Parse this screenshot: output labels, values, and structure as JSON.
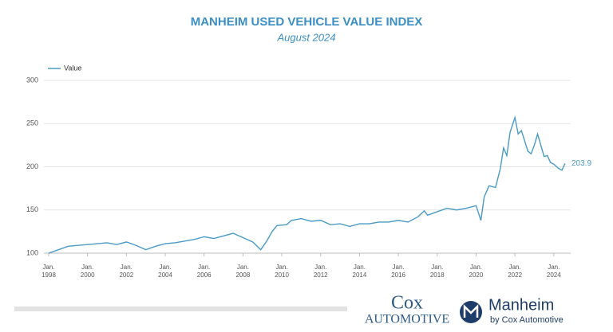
{
  "chart_data": {
    "type": "line",
    "title": "MANHEIM USED VEHICLE VALUE INDEX",
    "subtitle": "August 2024",
    "x": [
      "1998-01",
      "1998-07",
      "1999-01",
      "1999-07",
      "2000-01",
      "2000-07",
      "2001-01",
      "2001-07",
      "2002-01",
      "2002-07",
      "2003-01",
      "2003-07",
      "2004-01",
      "2004-07",
      "2005-01",
      "2005-07",
      "2006-01",
      "2006-07",
      "2007-01",
      "2007-07",
      "2008-01",
      "2008-07",
      "2008-12",
      "2009-04",
      "2009-07",
      "2009-10",
      "2010-04",
      "2010-07",
      "2011-01",
      "2011-07",
      "2012-01",
      "2012-07",
      "2013-01",
      "2013-07",
      "2014-01",
      "2014-07",
      "2015-01",
      "2015-07",
      "2016-01",
      "2016-07",
      "2017-01",
      "2017-05",
      "2017-07",
      "2018-01",
      "2018-07",
      "2019-01",
      "2019-07",
      "2020-01",
      "2020-04",
      "2020-06",
      "2020-09",
      "2021-01",
      "2021-04",
      "2021-06",
      "2021-08",
      "2021-10",
      "2022-01",
      "2022-03",
      "2022-05",
      "2022-07",
      "2022-09",
      "2022-11",
      "2023-01",
      "2023-03",
      "2023-05",
      "2023-07",
      "2023-09",
      "2023-11",
      "2024-01",
      "2024-04",
      "2024-06",
      "2024-08"
    ],
    "series": [
      {
        "name": "Value",
        "color": "#4a9ac6",
        "values": [
          100,
          104,
          108,
          109,
          110,
          111,
          112,
          110,
          113,
          109,
          104,
          108,
          111,
          112,
          114,
          116,
          119,
          117,
          120,
          123,
          118,
          113,
          104,
          115,
          125,
          132,
          133,
          138,
          140,
          137,
          138,
          133,
          134,
          131,
          134,
          134,
          136,
          136,
          138,
          136,
          142,
          149,
          144,
          148,
          152,
          150,
          152,
          155,
          138,
          165,
          178,
          176,
          198,
          222,
          213,
          240,
          257,
          238,
          242,
          230,
          218,
          215,
          225,
          238,
          225,
          212,
          213,
          205,
          203,
          198,
          196,
          203.9
        ]
      }
    ],
    "ylim": [
      100,
      300
    ],
    "yticks": [
      100,
      150,
      200,
      250,
      300
    ],
    "xlim": [
      "1998-01",
      "2024-08"
    ],
    "xticks": [
      {
        "value": "1998-01",
        "label": "Jan. 1998"
      },
      {
        "value": "2000-01",
        "label": "Jan. 2000"
      },
      {
        "value": "2002-01",
        "label": "Jan. 2002"
      },
      {
        "value": "2004-01",
        "label": "Jan. 2004"
      },
      {
        "value": "2006-01",
        "label": "Jan. 2006"
      },
      {
        "value": "2008-01",
        "label": "Jan. 2008"
      },
      {
        "value": "2010-01",
        "label": "Jan. 2010"
      },
      {
        "value": "2012-01",
        "label": "Jan. 2012"
      },
      {
        "value": "2014-01",
        "label": "Jan. 2014"
      },
      {
        "value": "2016-01",
        "label": "Jan. 2016"
      },
      {
        "value": "2018-01",
        "label": "Jan. 2018"
      },
      {
        "value": "2020-01",
        "label": "Jan. 2020"
      },
      {
        "value": "2022-01",
        "label": "Jan. 2022"
      },
      {
        "value": "2024-01",
        "label": "Jan. 2024"
      }
    ],
    "grid": true,
    "legend": "top-left"
  },
  "footer": {
    "cox": "Cox",
    "automotive": "AUTOMOTIVE",
    "manheim": "Manheim",
    "tagline": "by Cox Automotive"
  }
}
